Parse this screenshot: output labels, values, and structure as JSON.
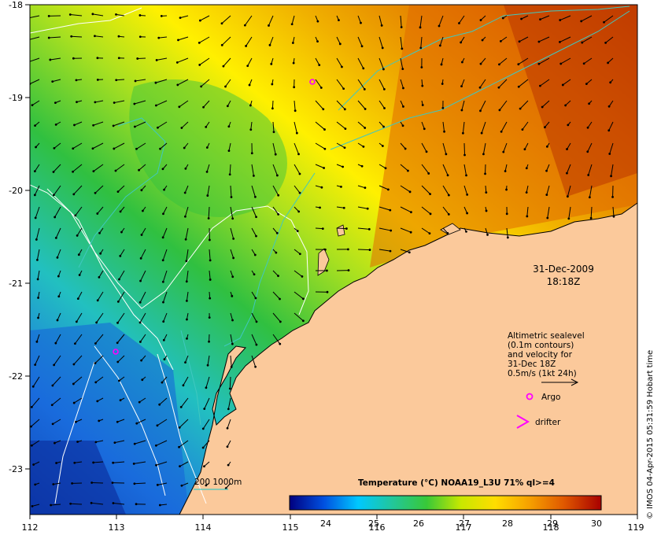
{
  "map": {
    "x_ticks": [
      "112",
      "113",
      "114",
      "115",
      "116",
      "117",
      "118",
      "119"
    ],
    "y_ticks": [
      "-18",
      "-19",
      "-20",
      "-21",
      "-22",
      "-23"
    ],
    "timestamp": {
      "date": "31-Dec-2009",
      "time": "18:18Z"
    },
    "legend_lines": [
      "Altimetric sealevel",
      "(0.1m contours)",
      "and velocity for",
      "31-Dec 18Z",
      "0.5m/s (1kt 24h)"
    ],
    "argo_label": "Argo",
    "drifter_label": "drifter",
    "bathymetry_label": "200  1000m",
    "colorbar": {
      "title": "Temperature (°C) NOAA19_L3U 71% ql>=4",
      "ticks": [
        "24",
        "25",
        "26",
        "27",
        "28",
        "29",
        "30"
      ],
      "colors": [
        "#000080",
        "#0050e0",
        "#00c8ff",
        "#22c79a",
        "#38c838",
        "#c8e800",
        "#ffdd00",
        "#f6a000",
        "#e05800",
        "#a80000"
      ]
    },
    "credit": "© IMOS 04-Apr-2015 05:31:59 Hobart time",
    "colors": {
      "land": "#fbc99b",
      "argo": "#ff00ff",
      "contour": "#ffffff",
      "isobath": "#40c8c0"
    }
  }
}
